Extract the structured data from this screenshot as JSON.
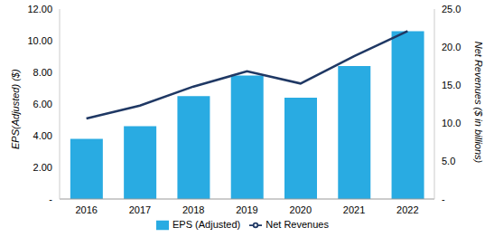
{
  "chart_data": {
    "type": "bar",
    "categories": [
      "2016",
      "2017",
      "2018",
      "2019",
      "2020",
      "2021",
      "2022"
    ],
    "series": [
      {
        "name": "EPS (Adjusted)",
        "type": "bar",
        "color": "#29abe2",
        "axis": "y",
        "values": [
          3.8,
          4.6,
          6.5,
          7.8,
          6.4,
          8.4,
          10.6
        ]
      },
      {
        "name": "Net Revenues",
        "type": "line",
        "color": "#1f3864",
        "axis": "y2",
        "values": [
          10.6,
          12.3,
          14.8,
          16.8,
          15.2,
          18.8,
          22.1
        ]
      }
    ],
    "y_label": "EPS(Adjusted) ($)",
    "y2_label": "Net Revenues ($ in billions)",
    "ylim": [
      0,
      12
    ],
    "yticks": [
      {
        "value": 0,
        "label": "-"
      },
      {
        "value": 2,
        "label": "2.00"
      },
      {
        "value": 4,
        "label": "4.00"
      },
      {
        "value": 6,
        "label": "6.00"
      },
      {
        "value": 8,
        "label": "8.00"
      },
      {
        "value": 10,
        "label": "10.00"
      },
      {
        "value": 12,
        "label": "12.00"
      }
    ],
    "y2lim": [
      0,
      25
    ],
    "y2ticks": [
      {
        "value": 0,
        "label": "-"
      },
      {
        "value": 5,
        "label": "5.0"
      },
      {
        "value": 10,
        "label": "10.0"
      },
      {
        "value": 15,
        "label": "15.0"
      },
      {
        "value": 20,
        "label": "20.0"
      },
      {
        "value": 25,
        "label": "25.0"
      }
    ],
    "legend": "bottom",
    "grid": false
  }
}
